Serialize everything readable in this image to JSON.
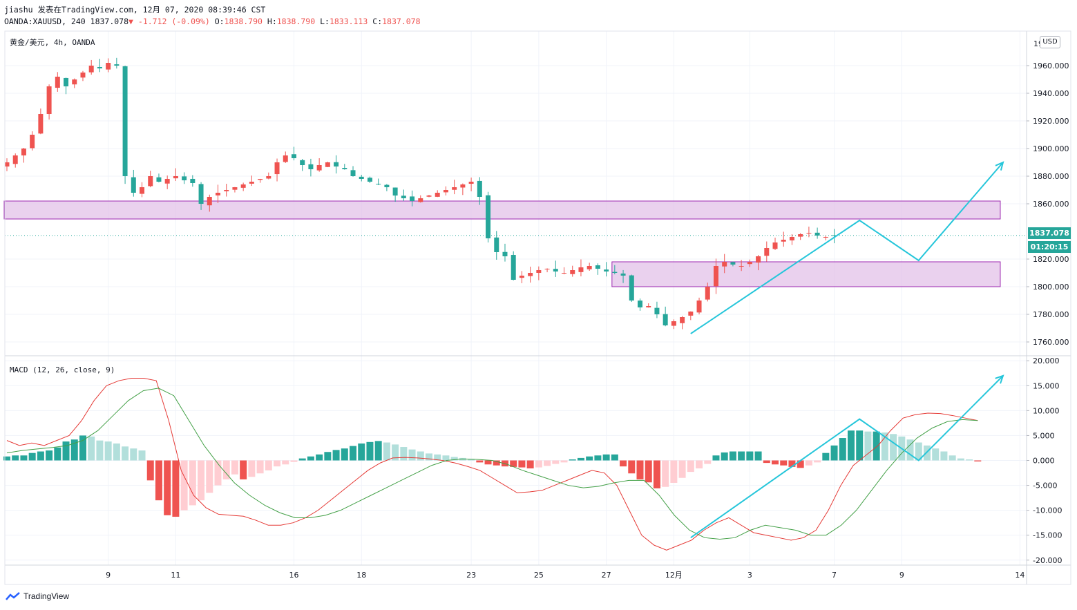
{
  "header": {
    "line1": "jiashu 发表在TradingView.com, 12月 07, 2020 08:39:46 CST",
    "symbol": "OANDA:XAUUSD, 240",
    "last": "1837.078",
    "change": "-1.712 (-0.09%)",
    "o_label": "O:",
    "o": "1838.790",
    "h_label": "H:",
    "h": "1838.790",
    "l_label": "L:",
    "l": "1833.113",
    "c_label": "C:",
    "c": "1837.078"
  },
  "price_pane": {
    "title": "黄金/美元, 4h, OANDA",
    "currency": "USD",
    "last_price_tag": "1837.078",
    "countdown_tag": "01:20:15",
    "y_ticks": [
      "1960.000",
      "1940.000",
      "1920.000",
      "1900.000",
      "1880.000",
      "1860.000",
      "1820.000",
      "1800.000",
      "1780.000",
      "1760.000"
    ],
    "partial_top_tick": "19"
  },
  "macd_pane": {
    "title": "MACD (12, 26, close, 9)",
    "y_ticks": [
      "20.000",
      "15.000",
      "10.000",
      "5.000",
      "0.000",
      "-5.000",
      "-10.000",
      "-15.000",
      "-20.000"
    ]
  },
  "x_axis": {
    "ticks": [
      "9",
      "11",
      "16",
      "18",
      "23",
      "25",
      "27",
      "12月",
      "3",
      "7",
      "9",
      "14"
    ]
  },
  "footer": {
    "brand": "TradingView"
  },
  "colors": {
    "up": "#ef5350",
    "down": "#26a69a",
    "zone_fill": "#e1bee7",
    "zone_stroke": "#9c27b0",
    "projection": "#26c6da",
    "macd_line": "#e53935",
    "signal_line": "#43a047",
    "hist_pos_strong": "#26a69a",
    "hist_pos_weak": "#b2dfdb",
    "hist_neg_strong": "#ef5350",
    "hist_neg_weak": "#ffcdd2"
  },
  "chart_data": [
    {
      "type": "candlestick",
      "title": "黄金/美元, 4h, OANDA",
      "ylim": [
        1750,
        1985
      ],
      "x": [
        "9",
        "11",
        "16",
        "18",
        "23",
        "25",
        "27",
        "12月",
        "3",
        "7",
        "9",
        "14"
      ],
      "close_path": [
        1890,
        1895,
        1900,
        1910,
        1925,
        1945,
        1952,
        1945,
        1950,
        1955,
        1960,
        1958,
        1962,
        1960,
        1880,
        1868,
        1872,
        1880,
        1876,
        1878,
        1880,
        1877,
        1875,
        1860,
        1865,
        1868,
        1870,
        1872,
        1874,
        1876,
        1878,
        1880,
        1890,
        1895,
        1893,
        1888,
        1885,
        1888,
        1890,
        1887,
        1885,
        1880,
        1878,
        1876,
        1874,
        1872,
        1866,
        1864,
        1862,
        1864,
        1866,
        1868,
        1870,
        1872,
        1874,
        1876,
        1865,
        1835,
        1825,
        1822,
        1805,
        1808,
        1810,
        1812,
        1813,
        1811,
        1810,
        1812,
        1814,
        1815,
        1813,
        1811,
        1810,
        1808,
        1790,
        1785,
        1786,
        1780,
        1772,
        1775,
        1778,
        1782,
        1790,
        1800,
        1815,
        1818,
        1816,
        1815,
        1818,
        1822,
        1828,
        1832,
        1834,
        1836,
        1838,
        1839,
        1837,
        1836,
        1837
      ],
      "zones": [
        {
          "from_index": 0,
          "to_index": 118,
          "low": 1849,
          "high": 1862
        },
        {
          "from_index": 72,
          "to_index": 118,
          "low": 1800,
          "high": 1818
        }
      ],
      "projection": [
        {
          "index": 81,
          "price": 1766
        },
        {
          "index": 101,
          "price": 1848
        },
        {
          "index": 108,
          "price": 1819
        },
        {
          "index": 118,
          "price": 1890
        }
      ],
      "last_price": 1837.078
    },
    {
      "type": "line",
      "title": "MACD (12, 26, close, 9)",
      "ylim": [
        -21,
        21
      ],
      "series": [
        {
          "values": [
            4,
            3,
            3.5,
            3,
            4,
            5,
            8,
            12,
            15,
            16,
            16.5,
            16.5,
            16,
            8,
            -2,
            -7,
            -9.5,
            -10.8,
            -11,
            -11.2,
            -12,
            -13,
            -13,
            -12.5,
            -11.5,
            -10,
            -8,
            -6,
            -4,
            -2,
            -0.5,
            0.5,
            0.6,
            0.5,
            0.3,
            0,
            -0.5,
            -1.2,
            -2,
            -3.5,
            -5,
            -6.5,
            -6.3,
            -6,
            -5,
            -4,
            -3,
            -2,
            -2.5,
            -5,
            -10,
            -15,
            -17,
            -18,
            -17,
            -16,
            -14,
            -12.5,
            -11.5,
            -13,
            -14.5,
            -15,
            -15.5,
            -16,
            -15.5,
            -14,
            -10,
            -5,
            -1,
            1,
            3,
            6,
            8.5,
            9.2,
            9.5,
            9.4,
            9,
            8.5,
            8
          ]
        },
        {
          "values": [
            1.5,
            2,
            2.3,
            2.6,
            3,
            4,
            6,
            9,
            12,
            14,
            14.5,
            13,
            8,
            3,
            -1,
            -4.5,
            -7,
            -9,
            -10.5,
            -11.5,
            -11.5,
            -11,
            -10,
            -8.5,
            -7,
            -5.5,
            -4,
            -2.5,
            -1,
            0,
            0.3,
            0.2,
            0,
            -0.8,
            -2,
            -3,
            -4,
            -5,
            -5.5,
            -5.2,
            -4.5,
            -4,
            -4,
            -7,
            -11,
            -14,
            -15.5,
            -15.8,
            -15.5,
            -14,
            -13,
            -13.5,
            -14,
            -15,
            -15,
            -13,
            -10,
            -6,
            -2,
            1.5,
            4.5,
            6.5,
            7.8,
            8.2,
            8
          ]
        }
      ],
      "histogram": [
        0.8,
        1,
        1,
        1.5,
        1.8,
        2,
        2.6,
        3.8,
        4.2,
        5,
        4.8,
        4,
        3.8,
        3.4,
        2.8,
        2.4,
        2,
        -4,
        -8,
        -11,
        -11.3,
        -10,
        -9,
        -8,
        -6.5,
        -5,
        -3.8,
        -2.8,
        -3.8,
        -3.3,
        -2.6,
        -2,
        -1.2,
        -0.8,
        -0.3,
        0.4,
        0.8,
        1.2,
        1.7,
        2.1,
        2.4,
        2.9,
        3.4,
        3.7,
        3.9,
        3.6,
        3.2,
        2.7,
        2.2,
        1.8,
        1.4,
        1.2,
        1,
        0.7,
        0.5,
        0.3,
        -0.4,
        -0.8,
        -1,
        -1.2,
        -1.3,
        -1.4,
        -1.6,
        -1.4,
        -1.1,
        -0.7,
        -0.4,
        0.2,
        0.5,
        0.8,
        1,
        1.2,
        1.2,
        -1.2,
        -2.6,
        -3.8,
        -4.4,
        -5.6,
        -5.3,
        -4.5,
        -3.5,
        -2.3,
        -1.6,
        -0.7,
        1,
        1.6,
        1.8,
        1.8,
        1.8,
        1.8,
        -0.5,
        -0.8,
        -1,
        -1.3,
        -1.5,
        -1,
        -0.4,
        1.5,
        3,
        4.5,
        6,
        6,
        5.8,
        5.8,
        5.6,
        5.3,
        4.8,
        4.2,
        3.6,
        3,
        2.4,
        1.8,
        1,
        0.4,
        0.2,
        -0.2
      ],
      "projection": [
        {
          "index": 81,
          "value": -15.5
        },
        {
          "index": 101,
          "value": 8.3
        },
        {
          "index": 108,
          "value": 0
        },
        {
          "index": 118,
          "value": 17
        }
      ]
    }
  ]
}
